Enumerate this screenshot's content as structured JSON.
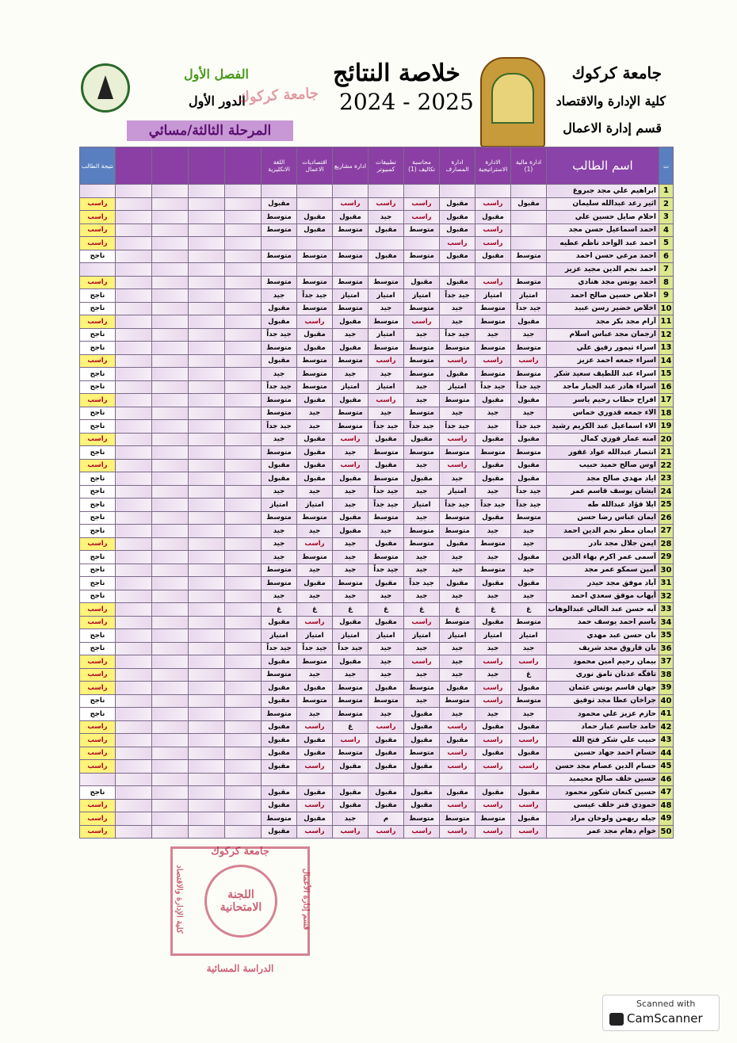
{
  "header": {
    "university": "جامعة كركوك",
    "college": "كلية الإدارة والاقتصاد",
    "department": "قسم إدارة الاعمال",
    "title": "خلاصة النتائج",
    "year": "2024 - 2025",
    "semester": "الفصل الأول",
    "round": "الدور الأول",
    "stage": "المرحلة الثالثة/مسائي",
    "stamp_text": "جامعة كركوك"
  },
  "table": {
    "headers": {
      "no": "ت",
      "name": "اسم الطالب",
      "subjects": [
        "ادارة مالية (1)",
        "الادارة الاستراتيجية",
        "ادارة المصارف",
        "محاسبة تكاليف (1)",
        "تطبيقات كمبيوتر",
        "ادارة مشاريع",
        "اقتصاديات الاعمال",
        "اللغة الانكليزية"
      ],
      "result": "نتيجة الطالب"
    },
    "rows": [
      {
        "no": 1,
        "name": "ابراهيم علي مجد جبروع",
        "grades": null,
        "result": null
      },
      {
        "no": 2,
        "name": "اثير رعد عبدالله سليمان",
        "grades": [
          "مقبول",
          "راسب",
          "مقبول",
          "راسب",
          "راسب",
          "راسب",
          null,
          "مقبول"
        ],
        "result": "راسب"
      },
      {
        "no": 3,
        "name": "احلام صايل حسين علي",
        "grades": [
          null,
          "مقبول",
          "مقبول",
          "راسب",
          "جيد",
          "مقبول",
          "مقبول",
          "متوسط"
        ],
        "result": "راسب"
      },
      {
        "no": 4,
        "name": "احمد اسماعيل حسن مجد",
        "grades": [
          null,
          "راسب",
          "مقبول",
          "متوسط",
          "مقبول",
          "متوسط",
          "مقبول",
          "متوسط"
        ],
        "result": "راسب"
      },
      {
        "no": 5,
        "name": "احمد عبد الواحد ناظم عطيه",
        "grades": [
          null,
          "راسب",
          "راسب",
          null,
          null,
          null,
          null,
          null
        ],
        "result": "راسب"
      },
      {
        "no": 6,
        "name": "احمد مرعي حسن احمد",
        "grades": [
          "متوسط",
          "مقبول",
          "مقبول",
          "متوسط",
          "مقبول",
          "متوسط",
          "متوسط",
          "متوسط"
        ],
        "result": "ناجح"
      },
      {
        "no": 7,
        "name": "احمد نجم الدين مجيد عزيز",
        "grades": null,
        "result": null
      },
      {
        "no": 8,
        "name": "احمد يونس مجد هنادي",
        "grades": [
          "متوسط",
          "راسب",
          "مقبول",
          "مقبول",
          "متوسط",
          "متوسط",
          "متوسط",
          "متوسط"
        ],
        "result": "راسب"
      },
      {
        "no": 9,
        "name": "اخلاص حسين صالح احمد",
        "grades": [
          "امتياز",
          "امتياز",
          "جيد جداً",
          "امتياز",
          "امتياز",
          "امتياز",
          "جيد جداً",
          "جيد"
        ],
        "result": "ناجح"
      },
      {
        "no": 10,
        "name": "اخلاص خضير رسن عبيد",
        "grades": [
          "جيد جداً",
          "متوسط",
          "جيد",
          "متوسط",
          "جيد",
          "متوسط",
          "متوسط",
          "مقبول"
        ],
        "result": "ناجح"
      },
      {
        "no": 11,
        "name": "آرام مجد بكر مجد",
        "grades": [
          "مقبول",
          "متوسط",
          "جيد",
          "راسب",
          "متوسط",
          "مقبول",
          "راسب",
          "مقبول"
        ],
        "result": "راسب"
      },
      {
        "no": 12,
        "name": "ارجمان مجد عباس اسلام",
        "grades": [
          "جيد",
          "جيد",
          "جيد جداً",
          "جيد",
          "امتياز",
          "جيد",
          "مقبول",
          "جيد جداً"
        ],
        "result": "ناجح"
      },
      {
        "no": 13,
        "name": "اسراء تيمور رفيق علي",
        "grades": [
          "متوسط",
          "متوسط",
          "متوسط",
          "متوسط",
          "متوسط",
          "مقبول",
          "مقبول",
          "متوسط"
        ],
        "result": "ناجح"
      },
      {
        "no": 14,
        "name": "اسراء جمعه احمد عزيز",
        "grades": [
          "راسب",
          "راسب",
          "راسب",
          "متوسط",
          "راسب",
          "متوسط",
          "متوسط",
          "مقبول"
        ],
        "result": "راسب"
      },
      {
        "no": 15,
        "name": "اسراء عبد اللطيف سعيد شكر",
        "grades": [
          "متوسط",
          "متوسط",
          "مقبول",
          "متوسط",
          "جيد",
          "جيد",
          "متوسط",
          "جيد"
        ],
        "result": "ناجح"
      },
      {
        "no": 16,
        "name": "اسراء هادر عبد الجبار ماجد",
        "grades": [
          "جيد جداً",
          "جيد جداً",
          "امتياز",
          "جيد",
          "امتياز",
          "امتياز",
          "متوسط",
          "جيد جداً"
        ],
        "result": "ناجح"
      },
      {
        "no": 17,
        "name": "افراح حطاب رحيم ياسر",
        "grades": [
          "مقبول",
          "مقبول",
          "متوسط",
          "جيد",
          "راسب",
          "مقبول",
          "مقبول",
          "متوسط"
        ],
        "result": "راسب"
      },
      {
        "no": 18,
        "name": "الاء جمعه قدوري خماس",
        "grades": [
          "جيد",
          "جيد",
          "جيد",
          "متوسط",
          "جيد",
          "متوسط",
          "جيد",
          "متوسط"
        ],
        "result": "ناجح"
      },
      {
        "no": 19,
        "name": "الاء اسماعيل عبد الكريم رشيد",
        "grades": [
          "جيد جداً",
          "جيد",
          "جيد جداً",
          "جيد جداً",
          "جيد جداً",
          "متوسط",
          "جيد",
          "جيد جداً"
        ],
        "result": "ناجح"
      },
      {
        "no": 20,
        "name": "امنه عمار فوزي كمال",
        "grades": [
          "مقبول",
          "مقبول",
          "راسب",
          "مقبول",
          "مقبول",
          "راسب",
          "مقبول",
          "جيد"
        ],
        "result": "راسب"
      },
      {
        "no": 21,
        "name": "انتصار عبدالله عواد غفور",
        "grades": [
          "متوسط",
          "متوسط",
          "متوسط",
          "متوسط",
          "متوسط",
          "جيد",
          "مقبول",
          "متوسط"
        ],
        "result": "ناجح"
      },
      {
        "no": 22,
        "name": "اوس صالح حميد حبيب",
        "grades": [
          "مقبول",
          "مقبول",
          "راسب",
          "جيد",
          "مقبول",
          "راسب",
          "مقبول",
          "مقبول"
        ],
        "result": "راسب"
      },
      {
        "no": 23,
        "name": "اياد مهدي صالح مجد",
        "grades": [
          "مقبول",
          "مقبول",
          "جيد",
          "مقبول",
          "متوسط",
          "مقبول",
          "مقبول",
          "مقبول"
        ],
        "result": "ناجح"
      },
      {
        "no": 24,
        "name": "ايشان يوسف قاسم عمر",
        "grades": [
          "جيد جداً",
          "جيد",
          "امتياز",
          "جيد",
          "جيد جداً",
          "جيد",
          "جيد",
          "جيد"
        ],
        "result": "ناجح"
      },
      {
        "no": 25,
        "name": "ايلا فؤاد عبدالله طه",
        "grades": [
          "جيد جداً",
          "جيد جداً",
          "جيد جداً",
          "امتياز",
          "جيد جداً",
          "جيد",
          "امتياز",
          "امتياز"
        ],
        "result": "ناجح"
      },
      {
        "no": 26,
        "name": "ايمان عباس رضا حسن",
        "grades": [
          "متوسط",
          "مقبول",
          "متوسط",
          "جيد",
          "متوسط",
          "مقبول",
          "متوسط",
          "متوسط"
        ],
        "result": "ناجح"
      },
      {
        "no": 27,
        "name": "ايمان مطر نجم الدين احمد",
        "grades": [
          "جيد",
          "جيد",
          "متوسط",
          "متوسط",
          "جيد",
          "مقبول",
          "جيد",
          "جيد"
        ],
        "result": "ناجح"
      },
      {
        "no": 28,
        "name": "ايمن جلال مجد نادر",
        "grades": [
          "جيد",
          "متوسط",
          "مقبول",
          "متوسط",
          "مقبول",
          "جيد",
          "راسب",
          "جيد"
        ],
        "result": "راسب"
      },
      {
        "no": 29,
        "name": "آسمى عمر اكرم بهاء الدين",
        "grades": [
          "مقبول",
          "جيد",
          "جيد",
          "جيد",
          "متوسط",
          "جيد",
          "متوسط",
          "جيد"
        ],
        "result": "ناجح"
      },
      {
        "no": 30,
        "name": "آمين سمكو عمر مجد",
        "grades": [
          "جيد",
          "متوسط",
          "جيد",
          "جيد",
          "جيد جداً",
          "جيد",
          "جيد",
          "متوسط"
        ],
        "result": "ناجح"
      },
      {
        "no": 31,
        "name": "آياد موفق مجد حيدر",
        "grades": [
          "مقبول",
          "مقبول",
          "مقبول",
          "جيد جداً",
          "مقبول",
          "متوسط",
          "مقبول",
          "متوسط"
        ],
        "result": "ناجح"
      },
      {
        "no": 32,
        "name": "أيهاب موفق سعدي احمد",
        "grades": [
          "جيد",
          "جيد",
          "جيد",
          "جيد",
          "جيد",
          "جيد",
          "جيد",
          "جيد"
        ],
        "result": "ناجح"
      },
      {
        "no": 33,
        "name": "آيه حسن عبد العالي عبدالوهاب",
        "grades": [
          "غ",
          "غ",
          "غ",
          "غ",
          "غ",
          "غ",
          "غ",
          "غ"
        ],
        "result": "راسب"
      },
      {
        "no": 34,
        "name": "باسم احمد يوسف حمد",
        "grades": [
          "متوسط",
          "مقبول",
          "متوسط",
          "راسب",
          "مقبول",
          "مقبول",
          "راسب",
          "مقبول"
        ],
        "result": "راسب"
      },
      {
        "no": 35,
        "name": "بان حسن عبد مهدي",
        "grades": [
          "امتياز",
          "امتياز",
          "امتياز",
          "امتياز",
          "امتياز",
          "امتياز",
          "امتياز",
          "امتياز"
        ],
        "result": "ناجح"
      },
      {
        "no": 36,
        "name": "بان فاروق مجد شريف",
        "grades": [
          "جيد",
          "جيد",
          "جيد",
          "جيد",
          "جيد",
          "جيد جداً",
          "جيد جداً",
          "جيد جداً"
        ],
        "result": "ناجح"
      },
      {
        "no": 37,
        "name": "بيمان رحيم امين محمود",
        "grades": [
          "راسب",
          "راسب",
          "جيد",
          "راسب",
          "جيد",
          "مقبول",
          "متوسط",
          "مقبول"
        ],
        "result": "راسب"
      },
      {
        "no": 38,
        "name": "تافگه عدنان نامق نوري",
        "grades": [
          "غ",
          "جيد",
          "جيد",
          "جيد",
          "جيد",
          "جيد",
          "جيد",
          "متوسط"
        ],
        "result": "راسب"
      },
      {
        "no": 39,
        "name": "جهان قاسم يونس عثمان",
        "grades": [
          "مقبول",
          "راسب",
          "مقبول",
          "متوسط",
          "مقبول",
          "متوسط",
          "مقبول",
          "مقبول"
        ],
        "result": "راسب"
      },
      {
        "no": 40,
        "name": "جراخان عطا مجد توفيق",
        "grades": [
          "متوسط",
          "راسب",
          "متوسط",
          "جيد",
          "متوسط",
          "متوسط",
          "متوسط",
          "مقبول"
        ],
        "result": "ناجح"
      },
      {
        "no": 41,
        "name": "حازم عزيز علي محمود",
        "grades": [
          "جيد",
          "جيد",
          "جيد",
          "مقبول",
          "جيد",
          "متوسط",
          "جيد",
          "متوسط"
        ],
        "result": "ناجح"
      },
      {
        "no": 42,
        "name": "حامد جاسم عبار حماد",
        "grades": [
          "مقبول",
          "مقبول",
          "راسب",
          "مقبول",
          "راسب",
          "غ",
          "راسب",
          "مقبول"
        ],
        "result": "راسب"
      },
      {
        "no": 43,
        "name": "حبيب علي شكر فتح الله",
        "grades": [
          "راسب",
          "راسب",
          "مقبول",
          "مقبول",
          "مقبول",
          "راسب",
          "مقبول",
          "مقبول"
        ],
        "result": "راسب"
      },
      {
        "no": 44,
        "name": "حسام احمد جهاد حسين",
        "grades": [
          "مقبول",
          "مقبول",
          "راسب",
          "متوسط",
          "مقبول",
          "متوسط",
          "مقبول",
          "مقبول"
        ],
        "result": "راسب"
      },
      {
        "no": 45,
        "name": "حسام الدين عصام مجد حسن",
        "grades": [
          "راسب",
          "راسب",
          "راسب",
          "مقبول",
          "مقبول",
          "مقبول",
          "راسب",
          "مقبول"
        ],
        "result": "راسب"
      },
      {
        "no": 46,
        "name": "حسين خلف صالح محيميد",
        "grades": null,
        "result": null
      },
      {
        "no": 47,
        "name": "حسين كنعان شكور محمود",
        "grades": [
          "مقبول",
          "مقبول",
          "مقبول",
          "مقبول",
          "مقبول",
          "مقبول",
          "مقبول",
          "مقبول"
        ],
        "result": "ناجح"
      },
      {
        "no": 48,
        "name": "حمودي فنر خلف عيسى",
        "grades": [
          "راسب",
          "راسب",
          "راسب",
          "مقبول",
          "مقبول",
          "مقبول",
          "راسب",
          "مقبول"
        ],
        "result": "راسب"
      },
      {
        "no": 49,
        "name": "جيله ريهمن ولوخان مراد",
        "grades": [
          "مقبول",
          "متوسط",
          "متوسط",
          "متوسط",
          "م",
          "جيد",
          "مقبول",
          "متوسط"
        ],
        "result": "راسب"
      },
      {
        "no": 50,
        "name": "خوام دهام مجد عمر",
        "grades": [
          "راسب",
          "راسب",
          "راسب",
          "راسب",
          "راسب",
          "راسب",
          "راسب",
          "مقبول"
        ],
        "result": "راسب"
      }
    ]
  },
  "stamp": {
    "top": "جامعة كركوك",
    "left": "كلية الإدارة والاقتصاد",
    "right": "قسم إدارة الأعمال",
    "center": "اللجنة الامتحانية",
    "bottom": "الدراسة المسائية"
  },
  "badge": {
    "line1": "Scanned with",
    "line2": "CamScanner"
  }
}
